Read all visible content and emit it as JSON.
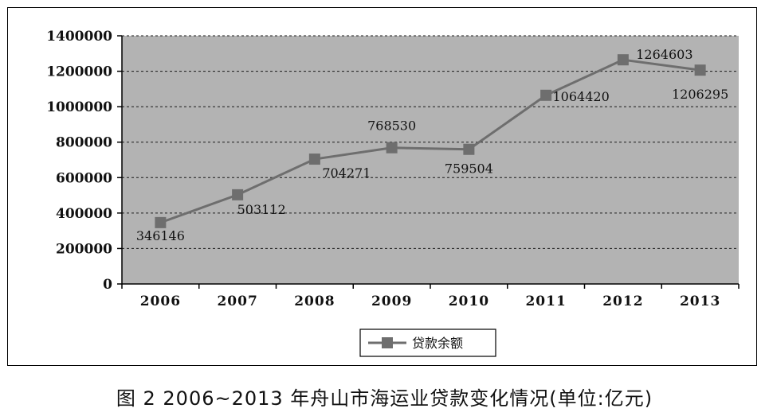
{
  "caption": "图 2   2006~2013 年舟山市海运业贷款变化情况(单位:亿元)",
  "colors": {
    "plot_background": "#b3b3b3",
    "series_line": "#6e6e6e",
    "marker": "#6e6e6e",
    "gridline": "#1a1a1a"
  },
  "chart_data": {
    "type": "line",
    "title": "",
    "xlabel": "",
    "ylabel": "",
    "categories": [
      "2006",
      "2007",
      "2008",
      "2009",
      "2010",
      "2011",
      "2012",
      "2013"
    ],
    "series": [
      {
        "name": "贷款余额",
        "values": [
          346146,
          503112,
          704271,
          768530,
          759504,
          1064420,
          1264603,
          1206295
        ],
        "marker": "square"
      }
    ],
    "ylim": [
      0,
      1400000
    ],
    "yticks": [
      "0",
      "200000",
      "400000",
      "600000",
      "800000",
      "1000000",
      "1200000",
      "1400000"
    ],
    "grid": "horizontal dashed",
    "legend": "bottom-center"
  }
}
